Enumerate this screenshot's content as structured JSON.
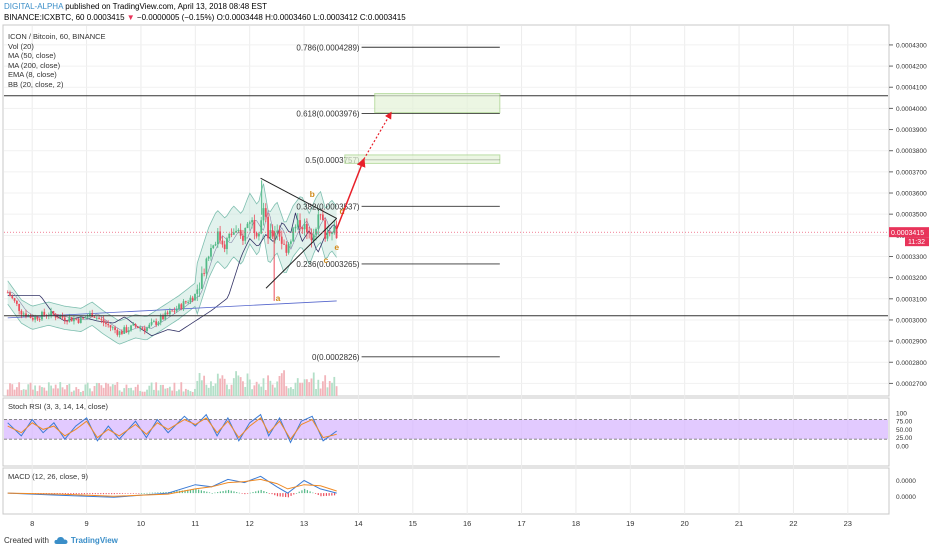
{
  "header": {
    "author": "DIGITAL-ALPHA",
    "published": "published on TradingView.com, April 13, 2018 08:48 EST",
    "symbol": "BINANCE:ICXBTC, 60",
    "last": "0.0003415",
    "change": "−0.0000005 (−0.15%)",
    "o_label": "O:",
    "o": "0.0003448",
    "h_label": "H:",
    "h": "0.0003460",
    "l_label": "L:",
    "l": "0.0003412",
    "c_label": "C:",
    "c": "0.0003415"
  },
  "indicators": [
    "ICON / Bitcoin, 60, BINANCE",
    "Vol (20)",
    "MA (50, close)",
    "MA (200, close)",
    "EMA (8, close)",
    "BB (20, close, 2)"
  ],
  "stoch_label": "Stoch RSI (3, 3, 14, 14, close)",
  "macd_label": "MACD (12, 26, close, 9)",
  "price_tag": "0.0003415",
  "time_tag": "11:32",
  "footer": {
    "created": "Created with",
    "brand": "TradingView"
  },
  "colors": {
    "up": "#53b987",
    "down": "#eb4d5c",
    "arrow": "#e8202a",
    "fib": "#333333",
    "stoch_band": "#d8b8ff",
    "bb": "#7fbfb0",
    "ma50": "#333366",
    "ma200": "#5566cc"
  },
  "chart_data": {
    "type": "candlestick",
    "price_axis": {
      "min": 0.000265,
      "max": 0.000438,
      "ticks": [
        "0.0004300",
        "0.0004200",
        "0.0004100",
        "0.0004000",
        "0.0003900",
        "0.0003800",
        "0.0003700",
        "0.0003600",
        "0.0003500",
        "0.0003400",
        "0.0003300",
        "0.0003200",
        "0.0003100",
        "0.0003000",
        "0.0002900",
        "0.0002800",
        "0.0002700"
      ]
    },
    "x_axis": {
      "min": 7.5,
      "max": 23.5,
      "ticks": [
        "8",
        "9",
        "10",
        "11",
        "12",
        "13",
        "14",
        "15",
        "16",
        "17",
        "18",
        "19",
        "20",
        "21",
        "22",
        "23"
      ]
    },
    "price_path": [
      [
        7.55,
        0.000313
      ],
      [
        7.8,
        0.000304
      ],
      [
        8.0,
        0.000301
      ],
      [
        8.3,
        0.000303
      ],
      [
        8.6,
        0.000301
      ],
      [
        8.9,
        0.0003
      ],
      [
        9.1,
        0.000303
      ],
      [
        9.3,
        0.000299
      ],
      [
        9.6,
        0.000294
      ],
      [
        9.9,
        0.000297
      ],
      [
        10.1,
        0.000296
      ],
      [
        10.4,
        0.000301
      ],
      [
        10.7,
        0.000306
      ],
      [
        11.0,
        0.000312
      ],
      [
        11.1,
        0.00032
      ],
      [
        11.25,
        0.000332
      ],
      [
        11.4,
        0.00034
      ],
      [
        11.55,
        0.000336
      ],
      [
        11.7,
        0.000342
      ],
      [
        11.85,
        0.000338
      ],
      [
        12.0,
        0.000348
      ],
      [
        12.15,
        0.000342
      ],
      [
        12.25,
        0.000353
      ],
      [
        12.35,
        0.000338
      ],
      [
        12.5,
        0.000344
      ],
      [
        12.65,
        0.000333
      ],
      [
        12.8,
        0.000342
      ],
      [
        12.95,
        0.000347
      ],
      [
        13.1,
        0.000338
      ],
      [
        13.2,
        0.000345
      ],
      [
        13.3,
        0.000349
      ],
      [
        13.4,
        0.00034
      ],
      [
        13.5,
        0.000345
      ],
      [
        13.6,
        0.0003415
      ]
    ],
    "spikes": [
      {
        "x": 12.22,
        "high": 0.000366
      },
      {
        "x": 12.45,
        "low": 0.000309
      }
    ],
    "fibonacci": [
      {
        "label": "0.786(0.0004289)",
        "value": 0.0004289,
        "x1": 12.55,
        "x2": 16.6
      },
      {
        "label": "0.618(0.0003976)",
        "value": 0.0003976,
        "x1": 12.55,
        "x2": 16.6
      },
      {
        "label": "0.5(0.0003757)",
        "value": 0.0003757,
        "x1": 12.55,
        "x2": 16.6
      },
      {
        "label": "0.382(0.0003537)",
        "value": 0.0003537,
        "x1": 12.55,
        "x2": 16.6
      },
      {
        "label": "0.236(0.0003265)",
        "value": 0.0003265,
        "x1": 12.55,
        "x2": 16.6
      },
      {
        "label": "0(0.0002826)",
        "value": 0.0002826,
        "x1": 12.55,
        "x2": 16.6
      }
    ],
    "horizontal_lines": [
      0.000406,
      0.000302
    ],
    "targets": [
      {
        "x1": 14.3,
        "x2": 16.6,
        "y1": 0.000407,
        "y2": 0.000398
      },
      {
        "x1": 13.75,
        "x2": 16.6,
        "y1": 0.000378,
        "y2": 0.000374
      }
    ],
    "triangle": [
      [
        12.2,
        0.000367
      ],
      [
        13.6,
        0.000348
      ],
      [
        12.3,
        0.000315
      ]
    ],
    "wave_labels": [
      {
        "text": "a",
        "x": 12.52,
        "y": 0.000309
      },
      {
        "text": "b",
        "x": 13.15,
        "y": 0.000358
      },
      {
        "text": "c",
        "x": 13.4,
        "y": 0.000327
      },
      {
        "text": "d",
        "x": 13.7,
        "y": 0.00035
      },
      {
        "text": "e",
        "x": 13.6,
        "y": 0.000333
      }
    ],
    "arrow_solid": [
      [
        13.6,
        0.000343
      ],
      [
        14.1,
        0.000376
      ]
    ],
    "arrow_dotted": [
      [
        14.1,
        0.000376
      ],
      [
        14.6,
        0.000398
      ]
    ],
    "stoch_axis": {
      "min": 0,
      "max": 100,
      "ticks": [
        "100",
        "75.00",
        "50.00",
        "25.00",
        "0.00"
      ],
      "band": [
        20,
        80
      ]
    },
    "stoch_k": [
      [
        7.55,
        70
      ],
      [
        7.8,
        30
      ],
      [
        8.0,
        80
      ],
      [
        8.2,
        40
      ],
      [
        8.4,
        70
      ],
      [
        8.6,
        20
      ],
      [
        8.8,
        60
      ],
      [
        9.0,
        85
      ],
      [
        9.2,
        15
      ],
      [
        9.4,
        60
      ],
      [
        9.6,
        20
      ],
      [
        9.9,
        75
      ],
      [
        10.1,
        25
      ],
      [
        10.3,
        80
      ],
      [
        10.5,
        40
      ],
      [
        10.8,
        90
      ],
      [
        11.0,
        60
      ],
      [
        11.2,
        95
      ],
      [
        11.4,
        30
      ],
      [
        11.6,
        85
      ],
      [
        11.8,
        15
      ],
      [
        12.0,
        70
      ],
      [
        12.2,
        95
      ],
      [
        12.35,
        30
      ],
      [
        12.55,
        85
      ],
      [
        12.75,
        10
      ],
      [
        12.95,
        75
      ],
      [
        13.15,
        90
      ],
      [
        13.35,
        15
      ],
      [
        13.6,
        45
      ]
    ],
    "stoch_d": [
      [
        7.55,
        60
      ],
      [
        7.8,
        40
      ],
      [
        8.0,
        70
      ],
      [
        8.2,
        50
      ],
      [
        8.4,
        60
      ],
      [
        8.6,
        30
      ],
      [
        8.8,
        50
      ],
      [
        9.0,
        75
      ],
      [
        9.2,
        25
      ],
      [
        9.4,
        50
      ],
      [
        9.6,
        30
      ],
      [
        9.9,
        65
      ],
      [
        10.1,
        35
      ],
      [
        10.3,
        70
      ],
      [
        10.5,
        50
      ],
      [
        10.8,
        80
      ],
      [
        11.0,
        65
      ],
      [
        11.2,
        85
      ],
      [
        11.4,
        40
      ],
      [
        11.6,
        75
      ],
      [
        11.8,
        25
      ],
      [
        12.0,
        60
      ],
      [
        12.2,
        85
      ],
      [
        12.35,
        40
      ],
      [
        12.55,
        75
      ],
      [
        12.75,
        20
      ],
      [
        12.95,
        65
      ],
      [
        13.15,
        80
      ],
      [
        13.35,
        25
      ],
      [
        13.6,
        35
      ]
    ],
    "macd_axis": {
      "min": -1.8e-06,
      "max": 2.2e-06,
      "ticks": [
        "0.0000",
        "0.0000"
      ],
      "tick_values": [
        1.2e-06,
        -3e-07
      ]
    },
    "macd_line": [
      [
        7.55,
        0.0
      ],
      [
        8.5,
        -2e-07
      ],
      [
        9.5,
        -4e-07
      ],
      [
        10.5,
        0.0
      ],
      [
        11.0,
        8e-07
      ],
      [
        11.3,
        6e-07
      ],
      [
        11.6,
        1.3e-06
      ],
      [
        11.9,
        1e-06
      ],
      [
        12.2,
        1.6e-06
      ],
      [
        12.5,
        6e-07
      ],
      [
        12.7,
        0.0
      ],
      [
        13.0,
        1.2e-06
      ],
      [
        13.3,
        4e-07
      ],
      [
        13.6,
        0.0
      ]
    ],
    "macd_signal": [
      [
        7.55,
        0.0
      ],
      [
        8.5,
        -1e-07
      ],
      [
        9.5,
        -3e-07
      ],
      [
        10.5,
        -1e-07
      ],
      [
        11.0,
        4e-07
      ],
      [
        11.3,
        6e-07
      ],
      [
        11.6,
        1e-06
      ],
      [
        11.9,
        1.1e-06
      ],
      [
        12.2,
        1.3e-06
      ],
      [
        12.5,
        9e-07
      ],
      [
        12.7,
        4e-07
      ],
      [
        13.0,
        8e-07
      ],
      [
        13.3,
        7e-07
      ],
      [
        13.6,
        2e-07
      ]
    ]
  }
}
